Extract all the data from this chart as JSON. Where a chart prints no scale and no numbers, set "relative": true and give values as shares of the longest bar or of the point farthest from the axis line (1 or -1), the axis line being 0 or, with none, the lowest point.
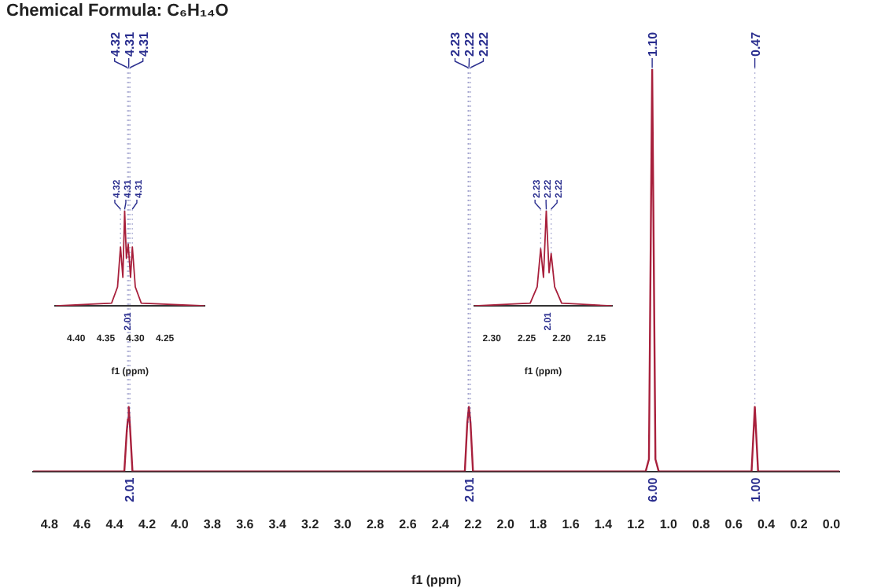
{
  "chart_data": [
    {
      "type": "line",
      "title": "Chemical Formula: C₆H₁₄O",
      "xlabel": "f1 (ppm)",
      "relative": true,
      "marker": "none",
      "legend": false,
      "xlim": [
        4.9,
        -0.05
      ],
      "xticks": [
        4.8,
        4.6,
        4.4,
        4.2,
        {
          "value": 4,
          "label": "4.0"
        },
        3.8,
        3.6,
        3.4,
        3.2,
        {
          "value": 3,
          "label": "3.0"
        },
        2.8,
        2.6,
        2.4,
        2.2,
        {
          "value": 2,
          "label": "2.0"
        },
        1.8,
        1.6,
        1.4,
        1.2,
        {
          "value": 1,
          "label": "1.0"
        },
        0.8,
        0.6,
        0.4,
        0.2,
        {
          "value": 0,
          "label": "0.0"
        }
      ],
      "series": [
        {
          "color": "#a8203c",
          "x": [
            4.9,
            4.34,
            4.325,
            4.318,
            4.313,
            4.305,
            4.29,
            2.25,
            2.235,
            2.225,
            2.215,
            2.2,
            1.14,
            1.12,
            1.1,
            1.08,
            1.06,
            0.49,
            0.47,
            0.45,
            -0.05
          ],
          "values": [
            0,
            0,
            0.1,
            0.13,
            0.16,
            0.11,
            0,
            0,
            0.12,
            0.16,
            0.12,
            0,
            0,
            0.03,
            1,
            0.03,
            0,
            0,
            0.16,
            0,
            0
          ]
        }
      ],
      "annotations": [
        {
          "text": "4.32",
          "x": 4.32,
          "y": 0.1
        },
        {
          "text": "4.31",
          "x": 4.313,
          "y": 0.16
        },
        {
          "text": "4.31",
          "x": 4.305,
          "y": 0.11
        },
        {
          "text": "2.23",
          "x": 2.23,
          "y": 0.12
        },
        {
          "text": "2.22",
          "x": 2.225,
          "y": 0.16
        },
        {
          "text": "2.22",
          "x": 2.215,
          "y": 0.12
        },
        {
          "text": "1.10",
          "x": 1.1,
          "y": 1
        },
        {
          "text": "0.47",
          "x": 0.47,
          "y": 0.16
        },
        "2.01",
        "2.01",
        "6.00",
        "1.00"
      ]
    },
    {
      "type": "line",
      "xlabel": "f1 (ppm)",
      "relative": true,
      "marker": "none",
      "legend": false,
      "xlim": [
        4.435,
        4.183
      ],
      "xticks": [
        {
          "value": 4.4,
          "label": "4.40"
        },
        4.35,
        {
          "value": 4.3,
          "label": "4.30"
        },
        4.25
      ],
      "series": [
        {
          "color": "#a8203c",
          "x": [
            4.435,
            4.34,
            4.33,
            4.325,
            4.321,
            4.318,
            4.315,
            4.312,
            4.308,
            4.305,
            4.3,
            4.29,
            4.183
          ],
          "values": [
            0,
            0.03,
            0.2,
            0.62,
            0.3,
            1,
            0.5,
            0.65,
            0.3,
            0.62,
            0.2,
            0.03,
            0
          ]
        }
      ],
      "annotations": [
        {
          "text": "4.32",
          "x": 4.325,
          "y": 0.62
        },
        {
          "text": "4.31",
          "x": 4.318,
          "y": 1
        },
        {
          "text": "4.31",
          "x": 4.305,
          "y": 0.62
        },
        "2.01"
      ]
    },
    {
      "type": "line",
      "xlabel": "f1 (ppm)",
      "relative": true,
      "marker": "none",
      "legend": false,
      "xlim": [
        2.325,
        2.128
      ],
      "xticks": [
        {
          "value": 2.3,
          "label": "2.30"
        },
        2.25,
        {
          "value": 2.2,
          "label": "2.20"
        },
        2.15
      ],
      "series": [
        {
          "color": "#a8203c",
          "x": [
            2.325,
            2.245,
            2.235,
            2.23,
            2.226,
            2.222,
            2.218,
            2.215,
            2.21,
            2.2,
            2.128
          ],
          "values": [
            0,
            0.03,
            0.2,
            0.6,
            0.3,
            1,
            0.35,
            0.55,
            0.2,
            0.03,
            0
          ]
        }
      ],
      "annotations": [
        {
          "text": "2.23",
          "x": 2.23,
          "y": 0.6
        },
        {
          "text": "2.22",
          "x": 2.222,
          "y": 1
        },
        {
          "text": "2.22",
          "x": 2.215,
          "y": 0.55
        },
        "2.01"
      ]
    }
  ]
}
